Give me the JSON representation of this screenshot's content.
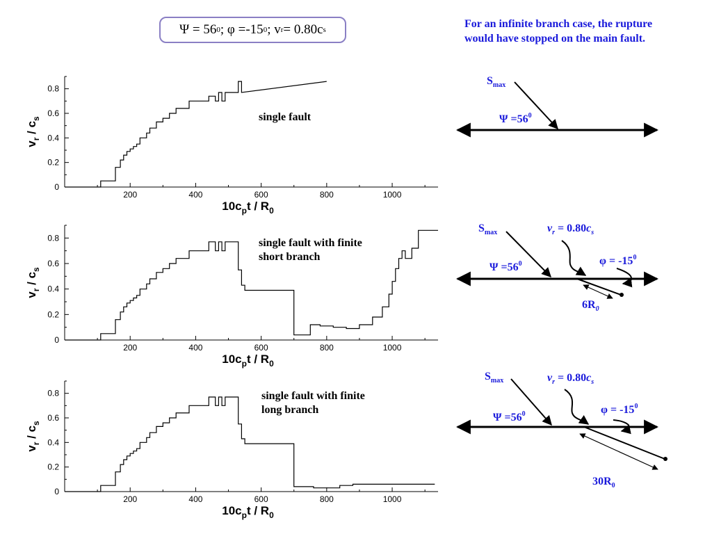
{
  "header": {
    "title_psi": "Ψ = 56",
    "title_psi_sup": "0",
    "title_phi": "; φ =-15",
    "title_phi_sup": "0",
    "title_v": "; v",
    "title_v_sub": "r",
    "title_eq": " = 0.80c",
    "title_c_sub": "s"
  },
  "note": "For an infinite branch case, the rupture would have stopped on the main fault.",
  "chart_data": [
    {
      "type": "line",
      "annotation": "single fault",
      "ylabel_main": "v",
      "ylabel_sub": "r",
      "ylabel_mid": " / c",
      "ylabel_sub2": "s",
      "xlabel_main": "10c",
      "xlabel_sub": "p",
      "xlabel_rest": "t / R",
      "xlabel_sub2": "0",
      "xlim": [
        0,
        1140
      ],
      "ylim": [
        0,
        0.9
      ],
      "xticks": [
        "200",
        "400",
        "600",
        "800",
        "1000"
      ],
      "yticks": [
        "0",
        "0.2",
        "0.4",
        "0.6",
        "0.8"
      ],
      "x": [
        0,
        110,
        110,
        155,
        155,
        170,
        170,
        180,
        180,
        190,
        190,
        200,
        200,
        210,
        210,
        220,
        220,
        230,
        230,
        250,
        250,
        260,
        260,
        280,
        280,
        300,
        300,
        320,
        320,
        340,
        340,
        380,
        380,
        440,
        440,
        460,
        460,
        470,
        470,
        480,
        480,
        490,
        490,
        500,
        500,
        530,
        530,
        540,
        540,
        800
      ],
      "y": [
        0,
        0,
        0.05,
        0.05,
        0.16,
        0.16,
        0.22,
        0.22,
        0.26,
        0.26,
        0.29,
        0.29,
        0.31,
        0.31,
        0.33,
        0.33,
        0.35,
        0.35,
        0.4,
        0.4,
        0.44,
        0.44,
        0.48,
        0.48,
        0.53,
        0.53,
        0.56,
        0.56,
        0.6,
        0.6,
        0.64,
        0.64,
        0.7,
        0.7,
        0.74,
        0.74,
        0.7,
        0.7,
        0.77,
        0.77,
        0.7,
        0.7,
        0.77,
        0.77,
        0.77,
        0.77,
        0.86,
        0.86,
        0.77,
        0.86
      ]
    },
    {
      "type": "line",
      "annotation": "single fault with finite short branch",
      "annotation_line1": "single fault with finite",
      "annotation_line2": "short branch",
      "ylabel_main": "v",
      "ylabel_sub": "r",
      "ylabel_mid": " / c",
      "ylabel_sub2": "s",
      "xlabel_main": "10c",
      "xlabel_sub": "p",
      "xlabel_rest": "t / R",
      "xlabel_sub2": "0",
      "xlim": [
        0,
        1140
      ],
      "ylim": [
        0,
        0.9
      ],
      "xticks": [
        "200",
        "400",
        "600",
        "800",
        "1000"
      ],
      "yticks": [
        "0",
        "0.2",
        "0.4",
        "0.6",
        "0.8"
      ],
      "x": [
        0,
        110,
        110,
        155,
        155,
        170,
        170,
        180,
        180,
        190,
        190,
        200,
        200,
        210,
        210,
        220,
        220,
        230,
        230,
        250,
        250,
        260,
        260,
        280,
        280,
        300,
        300,
        320,
        320,
        340,
        340,
        380,
        380,
        440,
        440,
        460,
        460,
        470,
        470,
        480,
        480,
        490,
        490,
        500,
        500,
        530,
        530,
        540,
        540,
        550,
        550,
        700,
        700,
        750,
        750,
        780,
        780,
        820,
        820,
        860,
        860,
        900,
        900,
        940,
        940,
        970,
        970,
        990,
        990,
        1000,
        1000,
        1010,
        1010,
        1020,
        1020,
        1030,
        1030,
        1040,
        1040,
        1060,
        1060,
        1080,
        1080,
        1100,
        1100,
        1140
      ],
      "y": [
        0,
        0,
        0.05,
        0.05,
        0.16,
        0.16,
        0.22,
        0.22,
        0.26,
        0.26,
        0.29,
        0.29,
        0.31,
        0.31,
        0.33,
        0.33,
        0.35,
        0.35,
        0.4,
        0.4,
        0.44,
        0.44,
        0.48,
        0.48,
        0.53,
        0.53,
        0.56,
        0.56,
        0.6,
        0.6,
        0.64,
        0.64,
        0.7,
        0.7,
        0.77,
        0.77,
        0.7,
        0.7,
        0.77,
        0.77,
        0.7,
        0.7,
        0.77,
        0.77,
        0.77,
        0.77,
        0.55,
        0.55,
        0.43,
        0.43,
        0.39,
        0.39,
        0.04,
        0.04,
        0.12,
        0.12,
        0.11,
        0.11,
        0.1,
        0.1,
        0.09,
        0.09,
        0.12,
        0.12,
        0.18,
        0.18,
        0.26,
        0.26,
        0.36,
        0.36,
        0.46,
        0.46,
        0.56,
        0.56,
        0.64,
        0.64,
        0.7,
        0.7,
        0.64,
        0.64,
        0.72,
        0.72,
        0.86,
        0.86,
        0.86,
        0.86
      ]
    },
    {
      "type": "line",
      "annotation": "single fault with finite long branch",
      "annotation_line1": "single fault with finite",
      "annotation_line2": "long branch",
      "ylabel_main": "v",
      "ylabel_sub": "r",
      "ylabel_mid": " / c",
      "ylabel_sub2": "s",
      "xlabel_main": "10c",
      "xlabel_sub": "p",
      "xlabel_rest": "t / R",
      "xlabel_sub2": "0",
      "xlim": [
        0,
        1140
      ],
      "ylim": [
        0,
        0.9
      ],
      "xticks": [
        "200",
        "400",
        "600",
        "800",
        "1000"
      ],
      "yticks": [
        "0",
        "0.2",
        "0.4",
        "0.6",
        "0.8"
      ],
      "x": [
        0,
        110,
        110,
        155,
        155,
        170,
        170,
        180,
        180,
        190,
        190,
        200,
        200,
        210,
        210,
        220,
        220,
        230,
        230,
        250,
        250,
        260,
        260,
        280,
        280,
        300,
        300,
        320,
        320,
        340,
        340,
        380,
        380,
        440,
        440,
        460,
        460,
        470,
        470,
        480,
        480,
        490,
        490,
        500,
        500,
        530,
        530,
        540,
        540,
        550,
        550,
        700,
        700,
        760,
        760,
        840,
        840,
        880,
        880,
        1000,
        1000,
        1130
      ],
      "y": [
        0,
        0,
        0.05,
        0.05,
        0.16,
        0.16,
        0.22,
        0.22,
        0.26,
        0.26,
        0.29,
        0.29,
        0.31,
        0.31,
        0.33,
        0.33,
        0.35,
        0.35,
        0.4,
        0.4,
        0.44,
        0.44,
        0.48,
        0.48,
        0.53,
        0.53,
        0.56,
        0.56,
        0.6,
        0.6,
        0.64,
        0.64,
        0.7,
        0.7,
        0.77,
        0.77,
        0.7,
        0.7,
        0.77,
        0.77,
        0.7,
        0.7,
        0.77,
        0.77,
        0.77,
        0.77,
        0.55,
        0.55,
        0.43,
        0.43,
        0.39,
        0.39,
        0.04,
        0.04,
        0.03,
        0.03,
        0.05,
        0.05,
        0.06,
        0.06,
        0.06,
        0.06
      ]
    }
  ],
  "diagrams": [
    {
      "smax_main": "S",
      "smax_sub": "max",
      "psi": "Ψ =56",
      "psi_sup": "0"
    },
    {
      "smax_main": "S",
      "smax_sub": "max",
      "psi": "Ψ =56",
      "psi_sup": "0",
      "vr_main": "v",
      "vr_sub": "r",
      "vr_eq": " = 0.80",
      "vr_c": "c",
      "vr_csub": "s",
      "phi": "φ = -15",
      "phi_sup": "0",
      "len_main": "6R",
      "len_sub": "0"
    },
    {
      "smax_main": "S",
      "smax_sub": "max",
      "psi": "Ψ =56",
      "psi_sup": "0",
      "vr_main": "v",
      "vr_sub": "r",
      "vr_eq": " = 0.80",
      "vr_c": "c",
      "vr_csub": "s",
      "phi": "φ = -15",
      "phi_sup": "0",
      "len_main": "30R",
      "len_sub": "0"
    }
  ]
}
